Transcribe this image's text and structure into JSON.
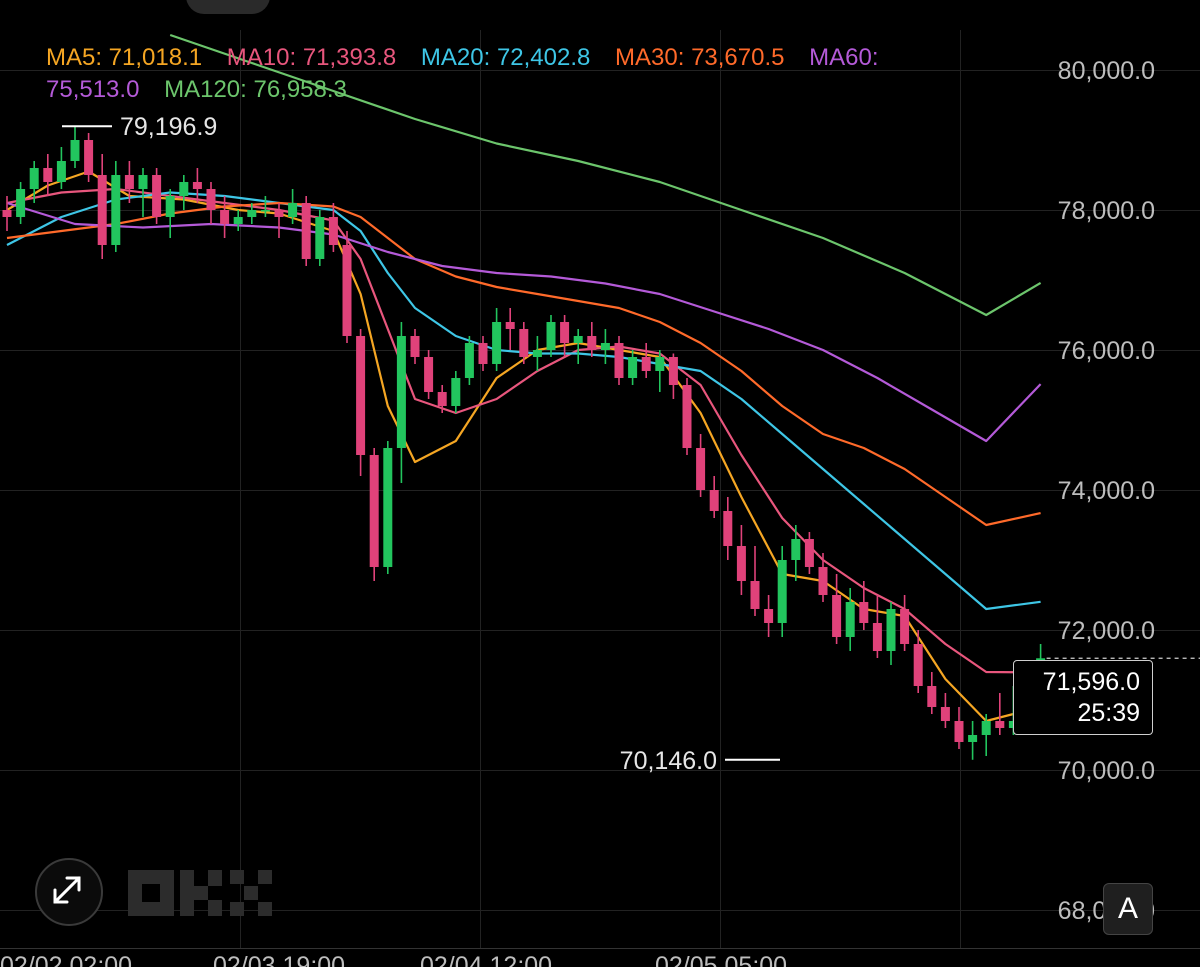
{
  "chart_data": {
    "type": "candlestick",
    "y_ticks": [
      "80,000.0",
      "78,000.0",
      "76,000.0",
      "74,000.0",
      "72,000.0",
      "70,000.0",
      "68,000.0"
    ],
    "y_tick_values": [
      80000,
      78000,
      76000,
      74000,
      72000,
      70000,
      68000
    ],
    "ylim": [
      67700,
      80200
    ],
    "x_labels": [
      "02/02 02:00",
      "02/03 19:00",
      "02/04 12:00",
      "02/05 05:00"
    ],
    "high_marker": "79,196.9",
    "low_marker": "70,146.0",
    "last_price": "71,596.0",
    "countdown": "25:39",
    "colors": {
      "up": "#22c55e",
      "down": "#e0427a",
      "ma5": "#f5a623",
      "ma10": "#e8567d",
      "ma20": "#3ec6e6",
      "ma30": "#ff6a2a",
      "ma60": "#b45ad8",
      "ma120": "#6cc56c"
    },
    "candles": [
      [
        78000,
        78200,
        77700,
        77900
      ],
      [
        77900,
        78400,
        77800,
        78300
      ],
      [
        78300,
        78700,
        78100,
        78600
      ],
      [
        78600,
        78800,
        78200,
        78400
      ],
      [
        78400,
        78900,
        78300,
        78700
      ],
      [
        78700,
        79197,
        78600,
        79000
      ],
      [
        79000,
        79100,
        78400,
        78500
      ],
      [
        78500,
        78800,
        77300,
        77500
      ],
      [
        77500,
        78700,
        77400,
        78500
      ],
      [
        78500,
        78700,
        78100,
        78300
      ],
      [
        78300,
        78600,
        77900,
        78500
      ],
      [
        78500,
        78600,
        77800,
        77900
      ],
      [
        77900,
        78300,
        77600,
        78200
      ],
      [
        78200,
        78500,
        78000,
        78400
      ],
      [
        78400,
        78600,
        78100,
        78300
      ],
      [
        78300,
        78400,
        77800,
        78000
      ],
      [
        78000,
        78200,
        77600,
        77800
      ],
      [
        77800,
        78000,
        77700,
        77900
      ],
      [
        77900,
        78100,
        77800,
        78000
      ],
      [
        78000,
        78200,
        77900,
        78000
      ],
      [
        78000,
        78100,
        77600,
        77900
      ],
      [
        77900,
        78300,
        77800,
        78100
      ],
      [
        78100,
        78200,
        77200,
        77300
      ],
      [
        77300,
        78000,
        77200,
        77900
      ],
      [
        77900,
        78100,
        77400,
        77500
      ],
      [
        77500,
        77700,
        76100,
        76200
      ],
      [
        76200,
        76300,
        74200,
        74500
      ],
      [
        74500,
        74600,
        72700,
        72900
      ],
      [
        72900,
        74700,
        72800,
        74600
      ],
      [
        74600,
        76400,
        74100,
        76200
      ],
      [
        76200,
        76300,
        75800,
        75900
      ],
      [
        75900,
        76000,
        75300,
        75400
      ],
      [
        75400,
        75500,
        75100,
        75200
      ],
      [
        75200,
        75700,
        75100,
        75600
      ],
      [
        75600,
        76200,
        75500,
        76100
      ],
      [
        76100,
        76200,
        75700,
        75800
      ],
      [
        75800,
        76600,
        75700,
        76400
      ],
      [
        76400,
        76600,
        76000,
        76300
      ],
      [
        76300,
        76400,
        75800,
        75900
      ],
      [
        75900,
        76200,
        75700,
        76000
      ],
      [
        76000,
        76500,
        75900,
        76400
      ],
      [
        76400,
        76500,
        75900,
        76100
      ],
      [
        76100,
        76300,
        75800,
        76200
      ],
      [
        76200,
        76400,
        75900,
        76000
      ],
      [
        76000,
        76300,
        75800,
        76100
      ],
      [
        76100,
        76200,
        75500,
        75600
      ],
      [
        75600,
        76000,
        75500,
        75900
      ],
      [
        75900,
        76100,
        75600,
        75700
      ],
      [
        75700,
        76000,
        75400,
        75900
      ],
      [
        75900,
        75950,
        75300,
        75500
      ],
      [
        75500,
        75600,
        74500,
        74600
      ],
      [
        74600,
        74800,
        73900,
        74000
      ],
      [
        74000,
        74200,
        73600,
        73700
      ],
      [
        73700,
        73900,
        73000,
        73200
      ],
      [
        73200,
        73500,
        72500,
        72700
      ],
      [
        72700,
        73200,
        72200,
        72300
      ],
      [
        72300,
        72500,
        71900,
        72100
      ],
      [
        72100,
        73200,
        71900,
        73000
      ],
      [
        73000,
        73500,
        72700,
        73300
      ],
      [
        73300,
        73400,
        72800,
        72900
      ],
      [
        72900,
        73100,
        72400,
        72500
      ],
      [
        72500,
        72800,
        71800,
        71900
      ],
      [
        71900,
        72600,
        71700,
        72400
      ],
      [
        72400,
        72700,
        72000,
        72100
      ],
      [
        72100,
        72500,
        71600,
        71700
      ],
      [
        71700,
        72400,
        71500,
        72300
      ],
      [
        72300,
        72500,
        71700,
        71800
      ],
      [
        71800,
        72000,
        71100,
        71200
      ],
      [
        71200,
        71400,
        70800,
        70900
      ],
      [
        70900,
        71100,
        70600,
        70700
      ],
      [
        70700,
        70900,
        70300,
        70400
      ],
      [
        70400,
        70700,
        70146,
        70500
      ],
      [
        70500,
        70800,
        70200,
        70700
      ],
      [
        70700,
        71100,
        70500,
        70600
      ],
      [
        70600,
        71200,
        70500,
        70700
      ],
      [
        70700,
        71100,
        70500,
        71000
      ],
      [
        71000,
        71800,
        70900,
        71596
      ]
    ],
    "series": [
      {
        "name": "MA5",
        "label": "MA5: 71,018.1",
        "last": 71018.1,
        "values": [
          [
            0,
            78000
          ],
          [
            3,
            78350
          ],
          [
            6,
            78550
          ],
          [
            9,
            78200
          ],
          [
            13,
            78150
          ],
          [
            17,
            78000
          ],
          [
            20,
            77950
          ],
          [
            24,
            77700
          ],
          [
            26,
            76800
          ],
          [
            28,
            75200
          ],
          [
            30,
            74400
          ],
          [
            33,
            74700
          ],
          [
            36,
            75600
          ],
          [
            39,
            76000
          ],
          [
            42,
            76100
          ],
          [
            45,
            76000
          ],
          [
            48,
            75900
          ],
          [
            51,
            75100
          ],
          [
            54,
            73900
          ],
          [
            57,
            72800
          ],
          [
            60,
            72700
          ],
          [
            63,
            72300
          ],
          [
            66,
            72200
          ],
          [
            69,
            71300
          ],
          [
            72,
            70700
          ],
          [
            74,
            70800
          ],
          [
            76,
            71018
          ]
        ]
      },
      {
        "name": "MA10",
        "label": "MA10: 71,393.8",
        "last": 71393.8,
        "values": [
          [
            0,
            78100
          ],
          [
            4,
            78250
          ],
          [
            8,
            78300
          ],
          [
            12,
            78200
          ],
          [
            16,
            78100
          ],
          [
            20,
            78000
          ],
          [
            24,
            77850
          ],
          [
            26,
            77300
          ],
          [
            28,
            76300
          ],
          [
            30,
            75300
          ],
          [
            33,
            75100
          ],
          [
            36,
            75300
          ],
          [
            39,
            75700
          ],
          [
            42,
            76000
          ],
          [
            45,
            76050
          ],
          [
            48,
            75950
          ],
          [
            51,
            75500
          ],
          [
            54,
            74500
          ],
          [
            57,
            73600
          ],
          [
            60,
            73000
          ],
          [
            63,
            72600
          ],
          [
            66,
            72300
          ],
          [
            69,
            71800
          ],
          [
            72,
            71400
          ],
          [
            76,
            71394
          ]
        ]
      },
      {
        "name": "MA20",
        "label": "MA20: 72,402.8",
        "last": 72402.8,
        "values": [
          [
            0,
            77500
          ],
          [
            4,
            77900
          ],
          [
            8,
            78150
          ],
          [
            12,
            78250
          ],
          [
            16,
            78200
          ],
          [
            20,
            78100
          ],
          [
            24,
            78000
          ],
          [
            26,
            77700
          ],
          [
            28,
            77100
          ],
          [
            30,
            76600
          ],
          [
            33,
            76200
          ],
          [
            36,
            76000
          ],
          [
            39,
            75950
          ],
          [
            42,
            75950
          ],
          [
            45,
            75900
          ],
          [
            48,
            75800
          ],
          [
            51,
            75700
          ],
          [
            54,
            75300
          ],
          [
            57,
            74800
          ],
          [
            60,
            74300
          ],
          [
            63,
            73800
          ],
          [
            66,
            73300
          ],
          [
            69,
            72800
          ],
          [
            72,
            72300
          ],
          [
            76,
            72403
          ]
        ]
      },
      {
        "name": "MA30",
        "label": "MA30: 73,670.5",
        "last": 73670.5,
        "values": [
          [
            0,
            77600
          ],
          [
            4,
            77700
          ],
          [
            8,
            77800
          ],
          [
            12,
            77950
          ],
          [
            16,
            78050
          ],
          [
            20,
            78100
          ],
          [
            24,
            78050
          ],
          [
            26,
            77900
          ],
          [
            28,
            77600
          ],
          [
            30,
            77300
          ],
          [
            33,
            77050
          ],
          [
            36,
            76900
          ],
          [
            39,
            76800
          ],
          [
            42,
            76700
          ],
          [
            45,
            76600
          ],
          [
            48,
            76400
          ],
          [
            51,
            76100
          ],
          [
            54,
            75700
          ],
          [
            57,
            75200
          ],
          [
            60,
            74800
          ],
          [
            63,
            74600
          ],
          [
            66,
            74300
          ],
          [
            69,
            73900
          ],
          [
            72,
            73500
          ],
          [
            76,
            73671
          ]
        ]
      },
      {
        "name": "MA60",
        "label": "MA60: 75,513.0",
        "last": 75513.0,
        "values": [
          [
            0,
            78100
          ],
          [
            5,
            77800
          ],
          [
            10,
            77750
          ],
          [
            15,
            77800
          ],
          [
            20,
            77750
          ],
          [
            24,
            77650
          ],
          [
            28,
            77400
          ],
          [
            32,
            77200
          ],
          [
            36,
            77100
          ],
          [
            40,
            77050
          ],
          [
            44,
            76950
          ],
          [
            48,
            76800
          ],
          [
            52,
            76550
          ],
          [
            56,
            76300
          ],
          [
            60,
            76000
          ],
          [
            64,
            75600
          ],
          [
            68,
            75150
          ],
          [
            72,
            74700
          ],
          [
            76,
            75513
          ]
        ]
      },
      {
        "name": "MA120",
        "label": "MA120: 76,958.3",
        "last": 76958.3,
        "values": [
          [
            12,
            80500
          ],
          [
            18,
            80100
          ],
          [
            24,
            79700
          ],
          [
            30,
            79300
          ],
          [
            36,
            78950
          ],
          [
            42,
            78700
          ],
          [
            48,
            78400
          ],
          [
            54,
            78000
          ],
          [
            60,
            77600
          ],
          [
            66,
            77100
          ],
          [
            72,
            76500
          ],
          [
            76,
            76958
          ]
        ]
      }
    ]
  }
}
